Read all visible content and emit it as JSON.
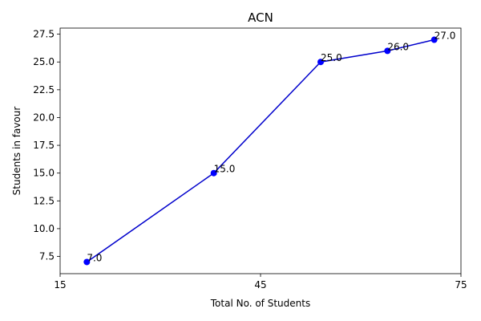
{
  "chart_data": {
    "type": "line",
    "title": "ACN",
    "xlabel": "Total No. of Students",
    "ylabel": "Students in favour",
    "xlim": [
      15,
      75
    ],
    "ylim": [
      5.95,
      28.05
    ],
    "xticks": [
      15,
      45,
      75
    ],
    "yticks": [
      7.5,
      10.0,
      12.5,
      15.0,
      17.5,
      20.0,
      22.5,
      25.0,
      27.5
    ],
    "xtick_labels": [
      "15",
      "45",
      "75"
    ],
    "ytick_labels": [
      "7.5",
      "10.0",
      "12.5",
      "15.0",
      "17.5",
      "20.0",
      "22.5",
      "25.0",
      "27.5"
    ],
    "grid": false,
    "legend": "none",
    "series": [
      {
        "color": "#0000cc",
        "marker_color": "#0000ff",
        "x": [
          19,
          38,
          54,
          64,
          71
        ],
        "y": [
          7.0,
          15.0,
          25.0,
          26.0,
          27.0
        ],
        "labels": [
          "7.0",
          "15.0",
          "25.0",
          "26.0",
          "27.0"
        ]
      }
    ]
  }
}
